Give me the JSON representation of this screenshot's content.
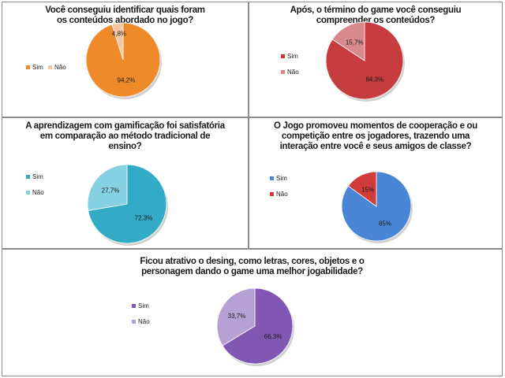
{
  "chart_data": [
    {
      "type": "pie",
      "title_lines": [
        "Você conseguiu  identificar quais foram",
        "os conteúdos abordado no jogo?"
      ],
      "legend": [
        "Sim",
        "Não"
      ],
      "legend_layout": "horizontal",
      "slices": [
        {
          "label": "Sim",
          "value": 94.2,
          "display": "94,2%",
          "color": "#ef8a2a"
        },
        {
          "label": "Não",
          "value": 4.8,
          "display": "4,8%",
          "color": "#f3c6a4"
        }
      ]
    },
    {
      "type": "pie",
      "title_lines": [
        "Após, o término do game você conseguiu",
        "compreender os conteúdos?"
      ],
      "legend": [
        "Sim",
        "Não"
      ],
      "legend_layout": "vertical",
      "slices": [
        {
          "label": "Sim",
          "value": 84.3,
          "display": "84,3%",
          "color": "#c63c3f"
        },
        {
          "label": "Não",
          "value": 15.7,
          "display": "15,7%",
          "color": "#d9898b"
        }
      ]
    },
    {
      "type": "pie",
      "title_lines": [
        "A aprendizagem com gamificação foi satisfatória",
        "em comparação ao método tradicional de",
        "ensino?"
      ],
      "legend": [
        "Sim",
        "Não"
      ],
      "legend_layout": "vertical",
      "slices": [
        {
          "label": "Sim",
          "value": 72.3,
          "display": "72,3%",
          "color": "#33aac6"
        },
        {
          "label": "Não",
          "value": 27.7,
          "display": "27,7%",
          "color": "#85d0e1"
        }
      ]
    },
    {
      "type": "pie",
      "title_lines": [
        "O Jogo promoveu momentos de cooperação e ou",
        "competição entre os jogadores, trazendo uma",
        "interação entre você e seus amigos de classe?"
      ],
      "legend": [
        "Sim",
        "Não"
      ],
      "legend_layout": "vertical",
      "slices": [
        {
          "label": "Sim",
          "value": 85,
          "display": "85%",
          "color": "#4a86d6"
        },
        {
          "label": "Não",
          "value": 15,
          "display": "15%",
          "color": "#d23b3b"
        }
      ]
    },
    {
      "type": "pie",
      "title_lines": [
        "Ficou atrativo o desing, como letras, cores, objetos e o",
        "personagem dando o game uma melhor jogabilidade?"
      ],
      "legend": [
        "Sim",
        "Não"
      ],
      "legend_layout": "vertical",
      "slices": [
        {
          "label": "Sim",
          "value": 66.3,
          "display": "66,3%",
          "color": "#8157b4"
        },
        {
          "label": "Não",
          "value": 33.7,
          "display": "33,7%",
          "color": "#b7a1d4"
        }
      ]
    }
  ]
}
